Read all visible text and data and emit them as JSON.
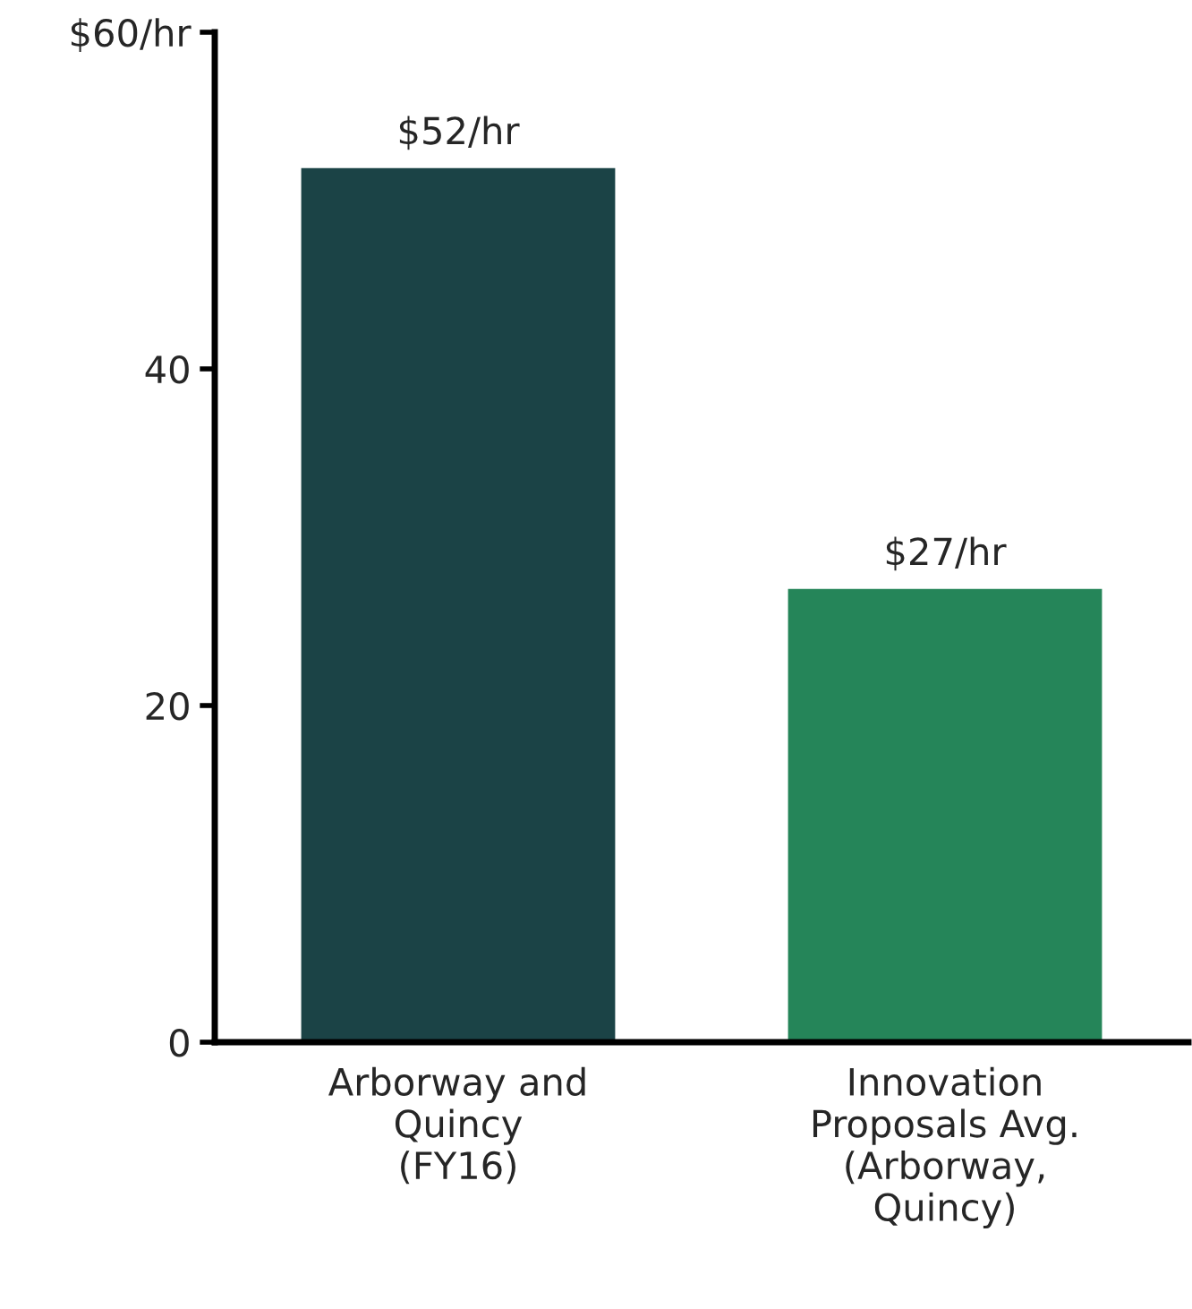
{
  "chart_data": {
    "type": "bar",
    "categories": [
      "Arborway and\nQuincy\n(FY16)",
      "Innovation\nProposals Avg.\n(Arborway,\nQuincy)"
    ],
    "values": [
      52,
      27
    ],
    "colors": [
      "#1b4346",
      "#258559"
    ],
    "value_labels": [
      "$52/hr",
      "$27/hr"
    ],
    "ylim": [
      0,
      60
    ],
    "yticks": [
      0,
      20,
      40,
      {
        "value": 60,
        "label": "$60/hr"
      }
    ],
    "grid": false
  }
}
